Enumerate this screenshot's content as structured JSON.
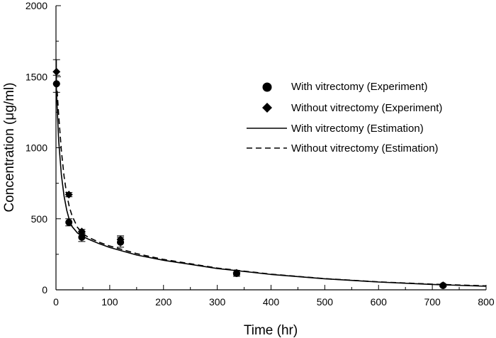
{
  "chart_data": {
    "type": "scatter",
    "title": "",
    "xlabel": "Time (hr)",
    "ylabel": "Concentration (μg/ml)",
    "xlim": [
      0,
      800
    ],
    "ylim": [
      0,
      2000
    ],
    "x_ticks": [
      0,
      100,
      200,
      300,
      400,
      500,
      600,
      700,
      800
    ],
    "y_ticks": [
      0,
      500,
      1000,
      1500,
      2000
    ],
    "grid": false,
    "legend_position": "right",
    "legend": [
      {
        "label": "With vitrectomy (Experiment)",
        "marker": "circle"
      },
      {
        "label": "Without vitrectomy (Experiment)",
        "marker": "diamond"
      },
      {
        "label": "With vitrectomy (Estimation)",
        "line": "solid"
      },
      {
        "label": "Without vitrectomy (Estimation)",
        "line": "dashed"
      }
    ],
    "series": [
      {
        "name": "With vitrectomy (Experiment)",
        "kind": "points",
        "marker": "circle",
        "x": [
          1,
          24,
          48,
          120,
          336,
          720
        ],
        "y": [
          1450,
          475,
          370,
          335,
          115,
          30
        ],
        "err": [
          60,
          25,
          30,
          35,
          20,
          8
        ]
      },
      {
        "name": "Without vitrectomy (Experiment)",
        "kind": "points",
        "marker": "diamond",
        "x": [
          1,
          24,
          48,
          120,
          336,
          720
        ],
        "y": [
          1535,
          670,
          410,
          355,
          120,
          32
        ],
        "err": [
          85,
          15,
          15,
          25,
          15,
          8
        ]
      },
      {
        "name": "With vitrectomy (Estimation)",
        "kind": "line",
        "style": "solid",
        "x": [
          0,
          5,
          10,
          15,
          20,
          25,
          30,
          40,
          50,
          60,
          80,
          100,
          150,
          200,
          300,
          400,
          500,
          600,
          700,
          800
        ],
        "y": [
          1470,
          1050,
          810,
          660,
          560,
          490,
          445,
          400,
          375,
          357,
          325,
          298,
          245,
          208,
          150,
          108,
          78,
          55,
          38,
          25
        ]
      },
      {
        "name": "Without vitrectomy (Estimation)",
        "kind": "line",
        "style": "dashed",
        "x": [
          0,
          5,
          10,
          15,
          20,
          25,
          30,
          40,
          50,
          60,
          80,
          100,
          150,
          200,
          300,
          400,
          500,
          600,
          700,
          800
        ],
        "y": [
          1530,
          1230,
          980,
          800,
          670,
          580,
          520,
          440,
          395,
          370,
          335,
          308,
          255,
          214,
          153,
          110,
          79,
          56,
          40,
          28
        ]
      }
    ]
  }
}
